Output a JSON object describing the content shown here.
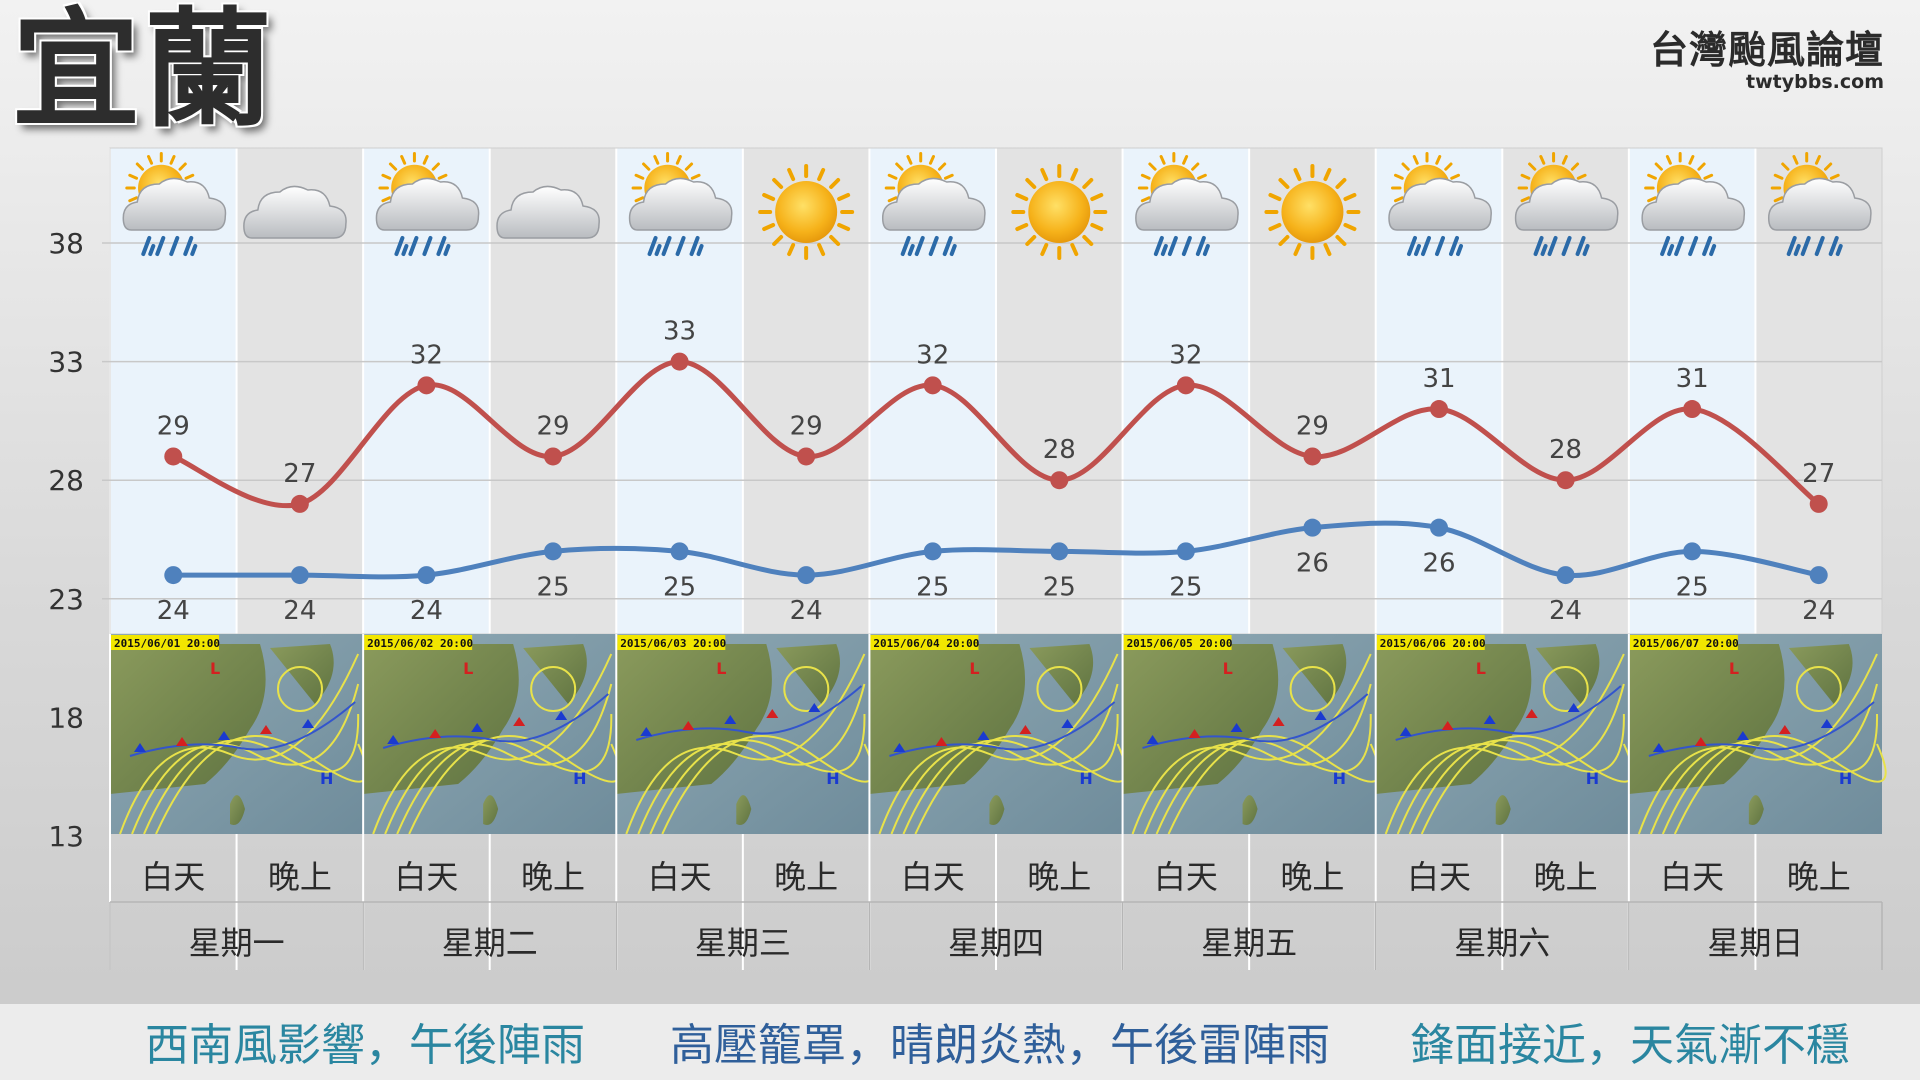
{
  "header": {
    "city": "宜蘭",
    "brand_name": "台灣颱風論壇",
    "brand_url": "twtybbs.com"
  },
  "chart_data": {
    "type": "line",
    "title": "",
    "xlabel": "",
    "ylabel": "",
    "ylim": [
      13,
      38
    ],
    "yticks": [
      13,
      18,
      23,
      28,
      33,
      38
    ],
    "categories": [
      "星期一 白天",
      "星期一 晚上",
      "星期二 白天",
      "星期二 晚上",
      "星期三 白天",
      "星期三 晚上",
      "星期四 白天",
      "星期四 晚上",
      "星期五 白天",
      "星期五 晚上",
      "星期六 白天",
      "星期六 晚上",
      "星期日 白天",
      "星期日 晚上"
    ],
    "period_labels": [
      "白天",
      "晚上",
      "白天",
      "晚上",
      "白天",
      "晚上",
      "白天",
      "晚上",
      "白天",
      "晚上",
      "白天",
      "晚上",
      "白天",
      "晚上"
    ],
    "day_labels": [
      "星期一",
      "星期二",
      "星期三",
      "星期四",
      "星期五",
      "星期六",
      "星期日"
    ],
    "series": [
      {
        "color": "#c0504d",
        "values": [
          29,
          27,
          32,
          29,
          33,
          29,
          32,
          28,
          32,
          29,
          31,
          28,
          31,
          27
        ]
      },
      {
        "color": "#4f81bd",
        "values": [
          24,
          24,
          24,
          25,
          25,
          24,
          25,
          25,
          25,
          26,
          26,
          24,
          25,
          24
        ]
      }
    ],
    "weather_icons": [
      "partly-sunny-rain-icon",
      "cloud-icon",
      "partly-sunny-rain-icon",
      "cloud-icon",
      "partly-sunny-rain-icon",
      "sun-icon",
      "partly-sunny-rain-icon",
      "sun-icon",
      "partly-sunny-rain-icon",
      "sun-icon",
      "partly-sunny-rain-icon",
      "partly-sunny-rain-icon",
      "partly-sunny-rain-icon",
      "partly-sunny-rain-icon"
    ],
    "weather_maps": [
      "2015/06/01 20:00",
      "2015/06/02 20:00",
      "2015/06/03 20:00",
      "2015/06/04 20:00",
      "2015/06/05 20:00",
      "2015/06/06 20:00",
      "2015/06/07 20:00"
    ],
    "grid": true,
    "legend": "none"
  },
  "phases": [
    {
      "text": "西南風影響，午後陣雨",
      "color": "#2a86a0"
    },
    {
      "text": "高壓籠罩，晴朗炎熱，午後雷陣雨",
      "color": "#2f5f9a"
    },
    {
      "text": "鋒面接近，天氣漸不穩",
      "color": "#2a86a0"
    }
  ],
  "colors": {
    "high_line": "#c0504d",
    "low_line": "#4f81bd",
    "day_column": "#eaf3fb",
    "night_column": "#e3e3e3",
    "arrow_teal": "#2a86a0",
    "arrow_navy": "#2f5f9a"
  }
}
